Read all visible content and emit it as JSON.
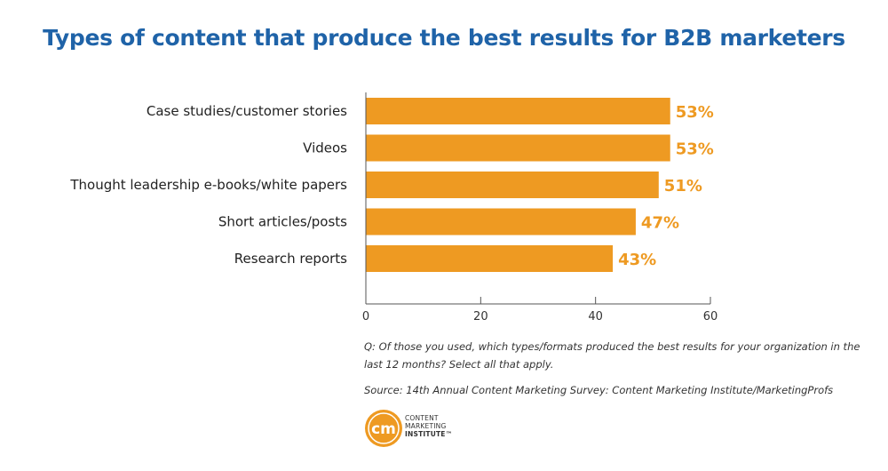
{
  "chart_data": {
    "type": "bar",
    "orientation": "horizontal",
    "title": "Types of content that produce the best results for B2B marketers",
    "categories": [
      "Case studies/customer stories",
      "Videos",
      "Thought leadership e-books/white papers",
      "Short articles/posts",
      "Research reports"
    ],
    "values": [
      53,
      53,
      51,
      47,
      43
    ],
    "value_labels": [
      "53%",
      "53%",
      "51%",
      "47%",
      "43%"
    ],
    "xlim": [
      0,
      60
    ],
    "xticks": [
      0,
      20,
      40,
      60
    ],
    "grid": false,
    "bar_color": "#ee9a22",
    "label_color": "#ee9a22"
  },
  "notes": {
    "question": "Q: Of those you used, which types/formats produced the best results for your organization in the last 12 months? Select all that apply.",
    "source": "Source: 14th Annual Content Marketing Survey: Content Marketing Institute/MarketingProfs"
  },
  "logo": {
    "mark": "cm",
    "line1": "CONTENT",
    "line2": "MARKETING",
    "line3": "INSTITUTE™",
    "color": "#ee9a22"
  }
}
